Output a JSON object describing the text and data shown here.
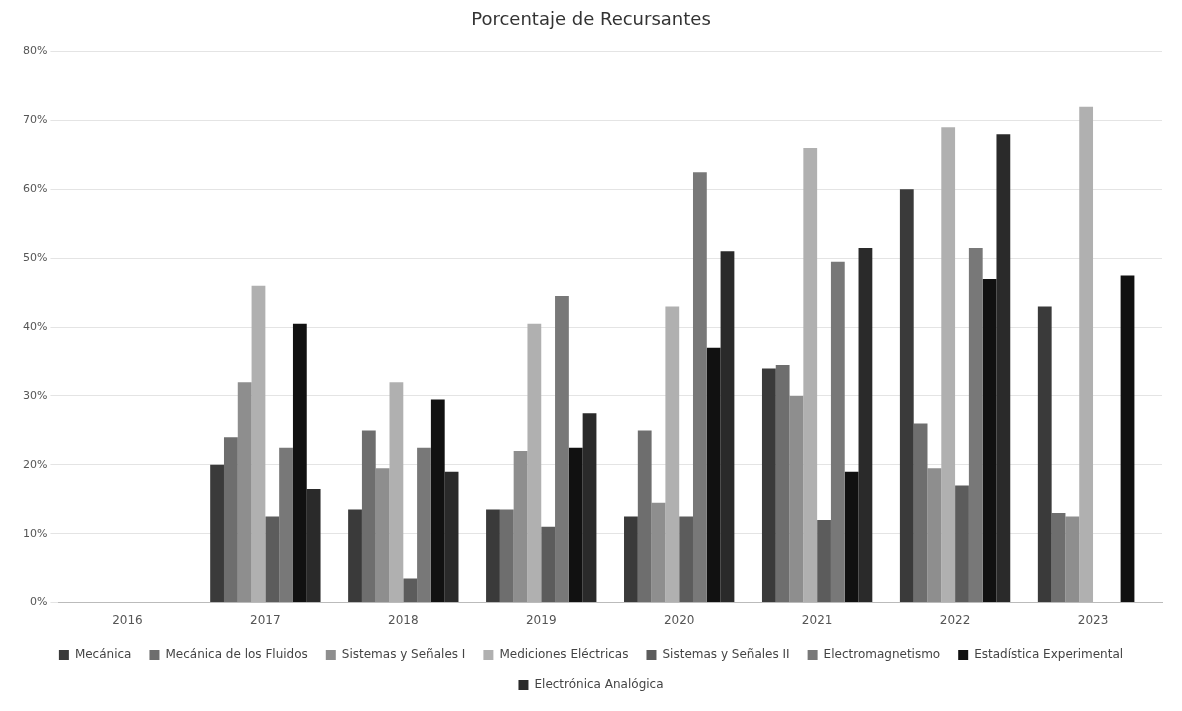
{
  "chart_data": {
    "type": "bar",
    "title": "Porcentaje de Recursantes",
    "categories": [
      "2016",
      "2017",
      "2018",
      "2019",
      "2020",
      "2021",
      "2022",
      "2023"
    ],
    "series": [
      {
        "name": "Mecánica",
        "color": "#3a3a3a",
        "values": [
          null,
          20,
          13.5,
          13.5,
          12.5,
          34,
          60,
          43
        ]
      },
      {
        "name": "Mecánica de los Fluidos",
        "color": "#6e6e6e",
        "values": [
          null,
          24,
          25,
          13.5,
          25,
          34.5,
          26,
          13
        ]
      },
      {
        "name": "Sistemas y Señales I",
        "color": "#8e8e8e",
        "values": [
          null,
          32,
          19.5,
          22,
          14.5,
          30,
          19.5,
          12.5
        ]
      },
      {
        "name": "Mediciones Eléctricas",
        "color": "#b0b0b0",
        "values": [
          null,
          46,
          32,
          40.5,
          43,
          66,
          69,
          72
        ]
      },
      {
        "name": "Sistemas y Señales II",
        "color": "#5c5c5c",
        "values": [
          null,
          12.5,
          3.5,
          11,
          12.5,
          12,
          17,
          null
        ]
      },
      {
        "name": "Electromagnetismo",
        "color": "#787878",
        "values": [
          null,
          22.5,
          22.5,
          44.5,
          62.5,
          49.5,
          51.5,
          null
        ]
      },
      {
        "name": "Estadística Experimental",
        "color": "#111111",
        "values": [
          null,
          40.5,
          29.5,
          22.5,
          37,
          19,
          47,
          47.5
        ]
      },
      {
        "name": "Electrónica Analógica",
        "color": "#2a2a2a",
        "values": [
          null,
          16.5,
          19,
          27.5,
          51,
          51.5,
          68,
          null
        ]
      }
    ],
    "ylim": [
      0,
      80
    ],
    "yticks": [
      {
        "value": 0,
        "label": "0%"
      },
      {
        "value": 10,
        "label": "10%"
      },
      {
        "value": 20,
        "label": "20%"
      },
      {
        "value": 30,
        "label": "30%"
      },
      {
        "value": 40,
        "label": "40%"
      },
      {
        "value": 50,
        "label": "50%"
      },
      {
        "value": 60,
        "label": "60%"
      },
      {
        "value": 70,
        "label": "70%"
      },
      {
        "value": 80,
        "label": "80%"
      }
    ],
    "grid": "y",
    "legend": "bottom"
  }
}
